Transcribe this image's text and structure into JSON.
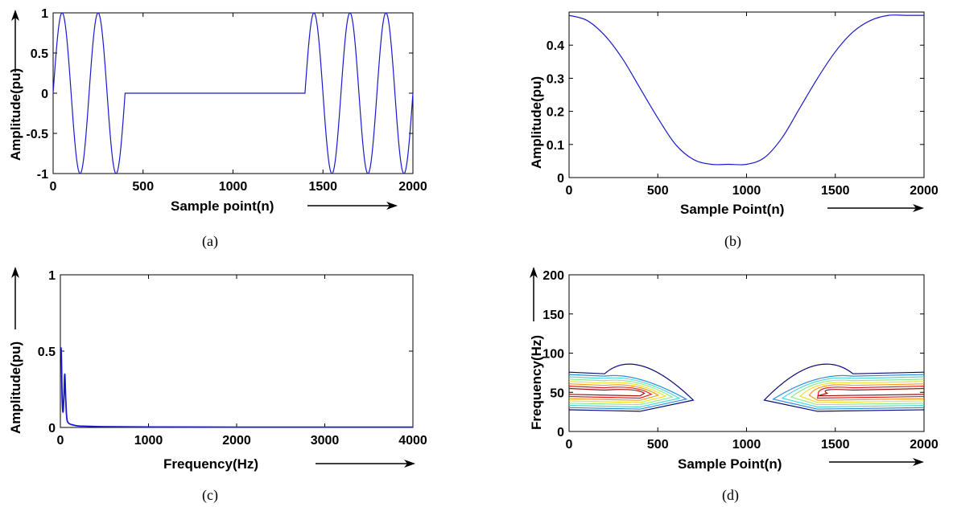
{
  "colors": {
    "trace": "#1a1acc",
    "contour": [
      "#0a0a7a",
      "#2e8fd6",
      "#4fd8d8",
      "#8ee88e",
      "#f0e02a",
      "#f59a1a",
      "#e02020",
      "#a01010"
    ]
  },
  "chart_data": [
    {
      "type": "line",
      "caption": "(a)",
      "xlabel": "Sample point(n)",
      "ylabel": "Amplitude(pu)",
      "xlim": [
        0,
        2000
      ],
      "ylim": [
        -1,
        1
      ],
      "xticks": [
        "0",
        "500",
        "1000",
        "1500",
        "2000"
      ],
      "yticks": [
        "-1",
        "-0.5",
        "0",
        "0.5",
        "1"
      ],
      "xtick_values": [
        0,
        500,
        1000,
        1500,
        2000
      ],
      "ytick_values": [
        -1,
        -0.5,
        0,
        0.5,
        1
      ],
      "series": [
        {
          "description": "sinusoid of period ~200 samples with interruption between samples 400 and 1400",
          "x": [
            0,
            50,
            100,
            150,
            200,
            250,
            300,
            350,
            400,
            1400,
            1450,
            1500,
            1550,
            1600,
            1650,
            1700,
            1750,
            1800,
            1850,
            1900,
            1950,
            2000
          ],
          "y": [
            0,
            1,
            0,
            -1,
            0,
            1,
            0,
            -1,
            0,
            0,
            1,
            0,
            -1,
            0,
            1,
            0,
            -1,
            0,
            1,
            0,
            -1,
            0
          ]
        }
      ]
    },
    {
      "type": "line",
      "caption": "(b)",
      "xlabel": "Sample Point(n)",
      "ylabel": "Amplitude(pu)",
      "xlim": [
        0,
        2000
      ],
      "ylim": [
        0,
        0.5
      ],
      "xticks": [
        "0",
        "500",
        "1000",
        "1500",
        "2000"
      ],
      "yticks": [
        "0",
        "0.1",
        "0.2",
        "0.3",
        "0.4"
      ],
      "xtick_values": [
        0,
        500,
        1000,
        1500,
        2000
      ],
      "ytick_values": [
        0,
        0.1,
        0.2,
        0.3,
        0.4
      ],
      "series": [
        {
          "x": [
            0,
            100,
            200,
            300,
            400,
            500,
            600,
            700,
            800,
            900,
            1000,
            1100,
            1200,
            1300,
            1400,
            1500,
            1600,
            1700,
            1800,
            1900,
            2000
          ],
          "y": [
            0.49,
            0.475,
            0.43,
            0.36,
            0.27,
            0.18,
            0.1,
            0.055,
            0.04,
            0.04,
            0.04,
            0.06,
            0.12,
            0.21,
            0.3,
            0.38,
            0.44,
            0.475,
            0.49,
            0.49,
            0.49
          ]
        }
      ]
    },
    {
      "type": "line",
      "caption": "(c)",
      "xlabel": "Frequency(Hz)",
      "ylabel": "Amplitude(pu)",
      "xlim": [
        0,
        4000
      ],
      "ylim": [
        0,
        1
      ],
      "xticks": [
        "0",
        "1000",
        "2000",
        "3000",
        "4000"
      ],
      "yticks": [
        "0",
        "0.5",
        "1"
      ],
      "xtick_values": [
        0,
        1000,
        2000,
        3000,
        4000
      ],
      "ytick_values": [
        0,
        0.5,
        1
      ],
      "series": [
        {
          "x": [
            0,
            10,
            20,
            30,
            40,
            50,
            60,
            70,
            80,
            100,
            150,
            200,
            300,
            500,
            1000,
            2000,
            3000,
            4000
          ],
          "y": [
            0.5,
            0.5,
            0.2,
            0.1,
            0.2,
            0.35,
            0.2,
            0.08,
            0.04,
            0.025,
            0.015,
            0.01,
            0.008,
            0.005,
            0.003,
            0.002,
            0.002,
            0.002
          ]
        }
      ]
    },
    {
      "type": "contour",
      "caption": "(d)",
      "xlabel": "Sample Point(n)",
      "ylabel": "Frequency(Hz)",
      "xlim": [
        0,
        2000
      ],
      "ylim": [
        0,
        200
      ],
      "xticks": [
        "0",
        "500",
        "1000",
        "1500",
        "2000"
      ],
      "yticks": [
        "0",
        "50",
        "100",
        "150",
        "200"
      ],
      "xtick_values": [
        0,
        500,
        1000,
        1500,
        2000
      ],
      "ytick_values": [
        0,
        50,
        100,
        150,
        200
      ],
      "regions": [
        {
          "x_range": [
            0,
            700
          ],
          "peak_frequency_hz": 50,
          "max_frequency_hz": 100
        },
        {
          "x_range": [
            1100,
            2000
          ],
          "peak_frequency_hz": 50,
          "max_frequency_hz": 100
        }
      ],
      "levels": 8
    }
  ]
}
